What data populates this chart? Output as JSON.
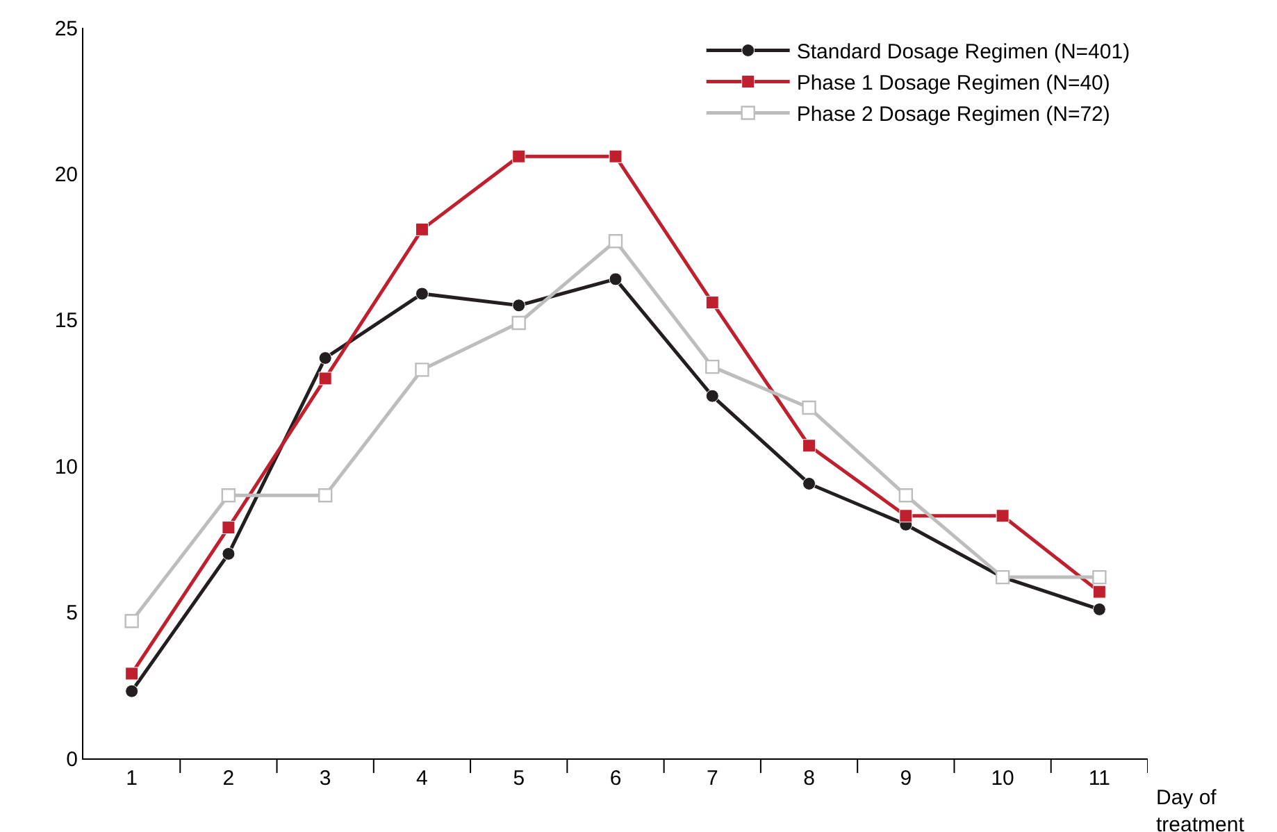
{
  "chart_data": {
    "type": "line",
    "xlabel": "Day of treatment",
    "categories": [
      "1",
      "2",
      "3",
      "4",
      "5",
      "6",
      "7",
      "8",
      "9",
      "10",
      "11"
    ],
    "ylim": [
      0,
      25
    ],
    "yticks": [
      0,
      5,
      10,
      15,
      20,
      25
    ],
    "legend": "top right",
    "line_style": "solid",
    "series": [
      {
        "name": "Standard Dosage Regimen (N=401)",
        "color": "#231f20",
        "marker": "circle",
        "values": [
          2.3,
          7.0,
          13.7,
          15.9,
          15.5,
          16.4,
          12.4,
          9.4,
          8.0,
          6.2,
          5.1
        ]
      },
      {
        "name": "Phase 1 Dosage Regimen (N=40)",
        "color": "#c0202e",
        "marker": "square",
        "values": [
          2.9,
          7.9,
          13.0,
          18.1,
          20.6,
          20.6,
          15.6,
          10.7,
          8.3,
          8.3,
          5.7
        ]
      },
      {
        "name": "Phase 2 Dosage Regimen (N=72)",
        "color": "#bdbdbd",
        "marker": "square-open",
        "values": [
          4.7,
          9.0,
          9.0,
          13.3,
          14.9,
          17.7,
          13.4,
          12.0,
          9.0,
          6.2,
          6.2
        ]
      }
    ]
  }
}
